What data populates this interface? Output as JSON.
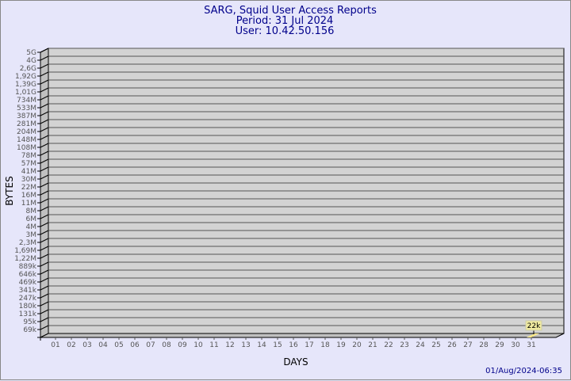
{
  "chart_data": {
    "type": "bar",
    "title": [
      "SARG, Squid User Access Reports",
      "Period: 31 Jul 2024",
      "User: 10.42.50.156"
    ],
    "xlabel": "DAYS",
    "ylabel": "BYTES",
    "y_scale": "log",
    "y_ticks": [
      "5G",
      "4G",
      "2,6G",
      "1,92G",
      "1,39G",
      "1,01G",
      "734M",
      "533M",
      "387M",
      "281M",
      "204M",
      "148M",
      "108M",
      "78M",
      "57M",
      "41M",
      "30M",
      "22M",
      "16M",
      "11M",
      "8M",
      "6M",
      "4M",
      "3M",
      "2,3M",
      "1,69M",
      "1,22M",
      "889k",
      "646k",
      "469k",
      "341k",
      "247k",
      "180k",
      "131k",
      "95k",
      "69k"
    ],
    "categories": [
      "01",
      "02",
      "03",
      "04",
      "05",
      "06",
      "07",
      "08",
      "09",
      "10",
      "11",
      "12",
      "13",
      "14",
      "15",
      "16",
      "17",
      "18",
      "19",
      "20",
      "21",
      "22",
      "23",
      "24",
      "25",
      "26",
      "27",
      "28",
      "29",
      "30",
      "31"
    ],
    "values": [
      null,
      null,
      null,
      null,
      null,
      null,
      null,
      null,
      null,
      null,
      null,
      null,
      null,
      null,
      null,
      null,
      null,
      null,
      null,
      null,
      null,
      null,
      null,
      null,
      null,
      null,
      null,
      null,
      null,
      null,
      22000
    ],
    "data_labels": {
      "31": "22k"
    },
    "grid": true,
    "colors": {
      "wall": "#d3d3d3",
      "side": "#c0c0c0",
      "bar": "#f5e68a",
      "label_bg": "#f0eaa0",
      "title": "#00008b"
    }
  },
  "footer": {
    "timestamp": "01/Aug/2024-06:35"
  }
}
